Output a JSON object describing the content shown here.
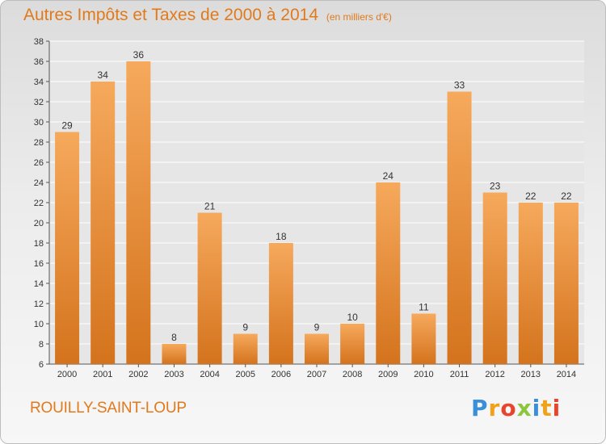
{
  "header": {
    "title": "Autres Impôts et Taxes de 2000 à 2014",
    "subtitle": "(en milliers d'€)"
  },
  "footer": {
    "commune": "ROUILLY-SAINT-LOUP",
    "logo": "Proxiti"
  },
  "colors": {
    "accent": "#e07a1c",
    "bar_top": "#f6a95c",
    "bar_bottom": "#d4731d"
  },
  "chart_data": {
    "type": "bar",
    "title": "Autres Impôts et Taxes de 2000 à 2014",
    "subtitle": "(en milliers d'€)",
    "categories": [
      "2000",
      "2001",
      "2002",
      "2003",
      "2004",
      "2005",
      "2006",
      "2007",
      "2008",
      "2009",
      "2010",
      "2011",
      "2012",
      "2013",
      "2014"
    ],
    "values": [
      29,
      34,
      36,
      8,
      21,
      9,
      18,
      9,
      10,
      24,
      11,
      33,
      23,
      22,
      22
    ],
    "ylim": [
      6,
      38
    ],
    "yticks": [
      6,
      8,
      10,
      12,
      14,
      16,
      18,
      20,
      22,
      24,
      26,
      28,
      30,
      32,
      34,
      36,
      38
    ],
    "grid": true,
    "xlabel": "",
    "ylabel": ""
  }
}
